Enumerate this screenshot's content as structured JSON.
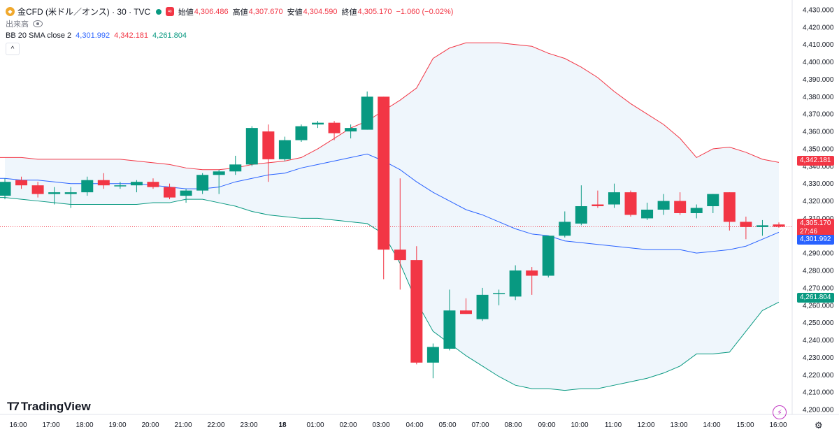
{
  "header": {
    "symbol_icon": "gold-coin-icon",
    "symbol": "金CFD (米ドル／オンス) · 30 · TVC",
    "open_label": "始値",
    "open": "4,306.486",
    "high_label": "高値",
    "high": "4,307.670",
    "low_label": "安値",
    "low": "4,304.590",
    "close_label": "終値",
    "close": "4,305.170",
    "change": "−1.060 (−0.02%)",
    "volume_label": "出来高",
    "bb_label": "BB 20 SMA close 2",
    "bb_basis": "4,301.992",
    "bb_upper": "4,342.181",
    "bb_lower": "4,261.804"
  },
  "branding": {
    "logo_text": "TradingView"
  },
  "price_tags": {
    "upper": "4,342.181",
    "close": "4,305.170",
    "countdown": "27:46",
    "basis": "4,301.992",
    "lower": "4,261.804"
  },
  "colors": {
    "up": "#089981",
    "down": "#f23645",
    "upper_band": "#f23645",
    "basis": "#2962ff",
    "lower_band": "#089981",
    "band_fill": "#e9f3fb"
  },
  "chart_data": {
    "type": "candlestick",
    "title": "金CFD (米ドル／オンス) · 30 · TVC",
    "ylim": [
      4197,
      4432
    ],
    "y_ticks": [
      4200,
      4210,
      4220,
      4230,
      4240,
      4250,
      4260,
      4270,
      4280,
      4290,
      4300,
      4310,
      4320,
      4330,
      4340,
      4350,
      4360,
      4370,
      4380,
      4390,
      4400,
      4410,
      4420,
      4430
    ],
    "x_labels": [
      "16:00",
      "17:00",
      "18:00",
      "19:00",
      "20:00",
      "21:00",
      "22:00",
      "23:00",
      "18",
      "01:00",
      "02:00",
      "03:00",
      "04:00",
      "05:00",
      "07:00",
      "08:00",
      "09:00",
      "10:00",
      "11:00",
      "12:00",
      "13:00",
      "14:00",
      "15:00",
      "16:00"
    ],
    "candles": [
      {
        "o": 4323,
        "h": 4333,
        "l": 4321,
        "c": 4331
      },
      {
        "o": 4332,
        "h": 4334,
        "l": 4327,
        "c": 4329
      },
      {
        "o": 4329,
        "h": 4331,
        "l": 4322,
        "c": 4324
      },
      {
        "o": 4324,
        "h": 4328,
        "l": 4318,
        "c": 4325
      },
      {
        "o": 4324,
        "h": 4328,
        "l": 4316,
        "c": 4325
      },
      {
        "o": 4325,
        "h": 4334,
        "l": 4323,
        "c": 4332
      },
      {
        "o": 4332,
        "h": 4336,
        "l": 4327,
        "c": 4329
      },
      {
        "o": 4329,
        "h": 4331,
        "l": 4327,
        "c": 4329
      },
      {
        "o": 4329,
        "h": 4332,
        "l": 4325,
        "c": 4331
      },
      {
        "o": 4331,
        "h": 4333,
        "l": 4327,
        "c": 4328
      },
      {
        "o": 4328,
        "h": 4330,
        "l": 4321,
        "c": 4322
      },
      {
        "o": 4323,
        "h": 4327,
        "l": 4319,
        "c": 4326
      },
      {
        "o": 4326,
        "h": 4336,
        "l": 4324,
        "c": 4335
      },
      {
        "o": 4335,
        "h": 4338,
        "l": 4324,
        "c": 4337
      },
      {
        "o": 4337,
        "h": 4346,
        "l": 4335,
        "c": 4341
      },
      {
        "o": 4341,
        "h": 4363,
        "l": 4340,
        "c": 4362
      },
      {
        "o": 4360,
        "h": 4364,
        "l": 4331,
        "c": 4344
      },
      {
        "o": 4344,
        "h": 4357,
        "l": 4343,
        "c": 4355
      },
      {
        "o": 4355,
        "h": 4364,
        "l": 4354,
        "c": 4363
      },
      {
        "o": 4364,
        "h": 4366,
        "l": 4362,
        "c": 4365
      },
      {
        "o": 4365,
        "h": 4366,
        "l": 4355,
        "c": 4359
      },
      {
        "o": 4360,
        "h": 4364,
        "l": 4356,
        "c": 4362
      },
      {
        "o": 4361,
        "h": 4383,
        "l": 4361,
        "c": 4380
      },
      {
        "o": 4380,
        "h": 4380,
        "l": 4275,
        "c": 4292
      },
      {
        "o": 4292,
        "h": 4333,
        "l": 4269,
        "c": 4286
      },
      {
        "o": 4286,
        "h": 4294,
        "l": 4226,
        "c": 4227
      },
      {
        "o": 4227,
        "h": 4238,
        "l": 4218,
        "c": 4236
      },
      {
        "o": 4235,
        "h": 4269,
        "l": 4234,
        "c": 4257
      },
      {
        "o": 4257,
        "h": 4264,
        "l": 4255,
        "c": 4255
      },
      {
        "o": 4252,
        "h": 4270,
        "l": 4251,
        "c": 4266
      },
      {
        "o": 4267,
        "h": 4269,
        "l": 4260,
        "c": 4267
      },
      {
        "o": 4265,
        "h": 4283,
        "l": 4263,
        "c": 4280
      },
      {
        "o": 4280,
        "h": 4282,
        "l": 4266,
        "c": 4277
      },
      {
        "o": 4277,
        "h": 4300,
        "l": 4276,
        "c": 4300
      },
      {
        "o": 4300,
        "h": 4314,
        "l": 4299,
        "c": 4308
      },
      {
        "o": 4307,
        "h": 4329,
        "l": 4306,
        "c": 4317
      },
      {
        "o": 4318,
        "h": 4326,
        "l": 4316,
        "c": 4317
      },
      {
        "o": 4318,
        "h": 4330,
        "l": 4316,
        "c": 4325
      },
      {
        "o": 4325,
        "h": 4326,
        "l": 4311,
        "c": 4312
      },
      {
        "o": 4310,
        "h": 4319,
        "l": 4309,
        "c": 4315
      },
      {
        "o": 4315,
        "h": 4324,
        "l": 4312,
        "c": 4320
      },
      {
        "o": 4320,
        "h": 4325,
        "l": 4312,
        "c": 4313
      },
      {
        "o": 4313,
        "h": 4318,
        "l": 4310,
        "c": 4316
      },
      {
        "o": 4317,
        "h": 4324,
        "l": 4313,
        "c": 4324
      },
      {
        "o": 4325,
        "h": 4325,
        "l": 4303,
        "c": 4308
      },
      {
        "o": 4308,
        "h": 4311,
        "l": 4298,
        "c": 4305
      },
      {
        "o": 4305,
        "h": 4309,
        "l": 4300,
        "c": 4306
      },
      {
        "o": 4306.486,
        "h": 4307.67,
        "l": 4304.59,
        "c": 4305.17
      }
    ],
    "bollinger": {
      "upper": [
        4345,
        4345,
        4344,
        4344,
        4344,
        4344,
        4344,
        4344,
        4343,
        4342,
        4341,
        4339,
        4338,
        4338,
        4339,
        4341,
        4342,
        4343,
        4345,
        4350,
        4356,
        4362,
        4366,
        4372,
        4378,
        4385,
        4402,
        4408,
        4411,
        4411,
        4411,
        4410,
        4409,
        4405,
        4402,
        4397,
        4391,
        4383,
        4376,
        4370,
        4364,
        4356,
        4345,
        4350,
        4351,
        4348,
        4344,
        4342.181
      ],
      "basis": [
        4333,
        4332,
        4332,
        4331,
        4330,
        4330,
        4330,
        4330,
        4330,
        4329,
        4328,
        4327,
        4327,
        4328,
        4331,
        4333,
        4335,
        4336,
        4339,
        4341,
        4343,
        4345,
        4347,
        4343,
        4338,
        4331,
        4325,
        4320,
        4315,
        4312,
        4308,
        4304,
        4301,
        4300,
        4297,
        4296,
        4295,
        4294,
        4293,
        4292,
        4292,
        4292,
        4290,
        4291,
        4292,
        4294,
        4298,
        4301.992
      ],
      "lower": [
        4322,
        4321,
        4320,
        4319,
        4318,
        4318,
        4318,
        4318,
        4318,
        4319,
        4319,
        4321,
        4321,
        4319,
        4317,
        4314,
        4312,
        4311,
        4310,
        4310,
        4309,
        4308,
        4307,
        4301,
        4284,
        4262,
        4245,
        4238,
        4231,
        4225,
        4219,
        4214,
        4212,
        4212,
        4211,
        4212,
        4212,
        4214,
        4216,
        4218,
        4221,
        4225,
        4232,
        4232,
        4233,
        4245,
        4257,
        4261.804
      ]
    }
  }
}
